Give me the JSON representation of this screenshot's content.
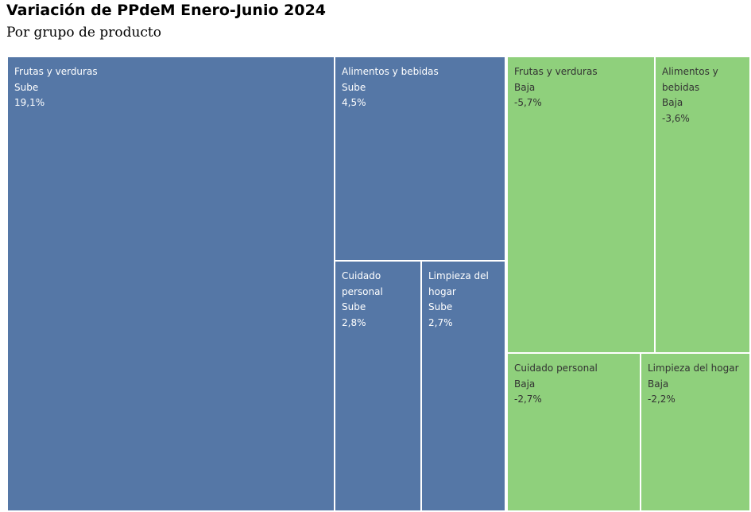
{
  "title": "Variación de PPdeM Enero-Junio 2024",
  "subtitle": "Por grupo de producto",
  "colors": {
    "sube": "#5577a6",
    "baja": "#8fd07c",
    "sube_text": "#ffffff",
    "baja_text": "#333333"
  },
  "chart_data": {
    "type": "treemap",
    "title": "Variación de PPdeM Enero-Junio 2024",
    "subtitle": "Por grupo de producto",
    "groups": [
      {
        "name": "Sube",
        "items": [
          {
            "product": "Frutas y verduras",
            "direction": "Sube",
            "value": 19.1,
            "label": "19,1%"
          },
          {
            "product": "Alimentos y bebidas",
            "direction": "Sube",
            "value": 4.5,
            "label": "4,5%"
          },
          {
            "product": "Cuidado personal",
            "direction": "Sube",
            "value": 2.8,
            "label": "2,8%"
          },
          {
            "product": "Limpieza del hogar",
            "direction": "Sube",
            "value": 2.7,
            "label": "2,7%"
          }
        ]
      },
      {
        "name": "Baja",
        "items": [
          {
            "product": "Frutas y verduras",
            "direction": "Baja",
            "value": -5.7,
            "label": "-5,7%"
          },
          {
            "product": "Alimentos y bebidas",
            "direction": "Baja",
            "value": -3.6,
            "label": "-3,6%"
          },
          {
            "product": "Cuidado personal",
            "direction": "Baja",
            "value": -2.7,
            "label": "-2,7%"
          },
          {
            "product": "Limpieza del hogar",
            "direction": "Baja",
            "value": -2.2,
            "label": "-2,2%"
          }
        ]
      }
    ]
  }
}
